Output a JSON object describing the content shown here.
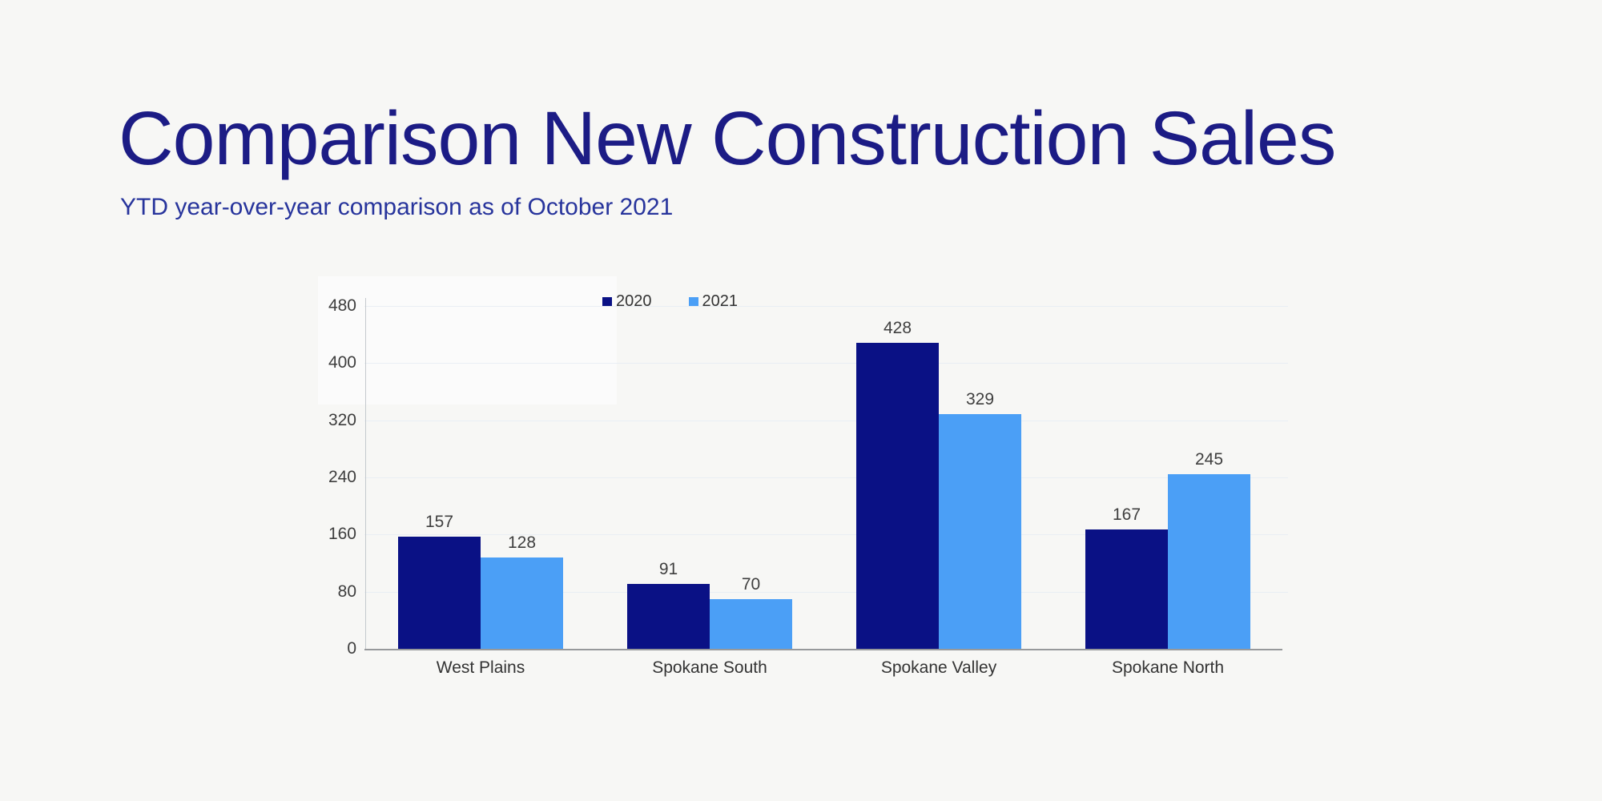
{
  "page": {
    "title": "Comparison New Construction Sales",
    "subtitle": "YTD year-over-year comparison as of October 2021"
  },
  "colors": {
    "background": "#f7f7f5",
    "title_text": "#1c1c85",
    "subtitle_text": "#27349c",
    "series_2020": "#0a1185",
    "series_2021": "#4b9ff6",
    "gridline": "#e9eef4",
    "axis_line": "#c4c9cd",
    "baseline": "#97999b",
    "label_text": "#3d3d3d"
  },
  "chart_data": {
    "type": "bar",
    "title": "Comparison New Construction Sales",
    "subtitle": "YTD year-over-year comparison as of October 2021",
    "categories": [
      "West Plains",
      "Spokane South",
      "Spokane Valley",
      "Spokane North"
    ],
    "series": [
      {
        "name": "2020",
        "color": "#0a1185",
        "values": [
          157,
          91,
          428,
          167
        ]
      },
      {
        "name": "2021",
        "color": "#4b9ff6",
        "values": [
          128,
          70,
          329,
          245
        ]
      }
    ],
    "xlabel": "",
    "ylabel": "",
    "ylim": [
      0,
      480
    ],
    "yticks": [
      0,
      80,
      160,
      240,
      320,
      400,
      480
    ],
    "grid": "horizontal",
    "legend_position": "top",
    "data_labels": true
  }
}
